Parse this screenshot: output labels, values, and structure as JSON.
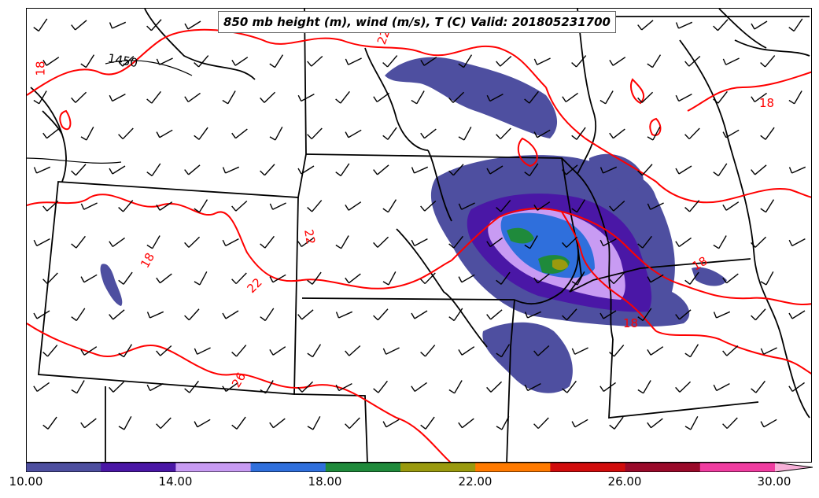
{
  "title": "850 mb height (m), wind (m/s), T (C) Valid: 201805231700",
  "colorbar": {
    "ticks": [
      "10.00",
      "14.00",
      "18.00",
      "22.00",
      "26.00",
      "30.00"
    ],
    "bins": [
      {
        "from": 10,
        "to": 12,
        "color": "#4e4fa0"
      },
      {
        "from": 12,
        "to": 14,
        "color": "#4a17a6"
      },
      {
        "from": 14,
        "to": 16,
        "color": "#c89bf3"
      },
      {
        "from": 16,
        "to": 18,
        "color": "#2f6fdc"
      },
      {
        "from": 18,
        "to": 20,
        "color": "#1f8a3b"
      },
      {
        "from": 20,
        "to": 22,
        "color": "#9a9a0e"
      },
      {
        "from": 22,
        "to": 24,
        "color": "#ff7a00"
      },
      {
        "from": 24,
        "to": 26,
        "color": "#d10c0c"
      },
      {
        "from": 26,
        "to": 28,
        "color": "#9a0a2a"
      },
      {
        "from": 28,
        "to": 30,
        "color": "#f03ca0"
      }
    ],
    "extend_color": "#f7b0d8"
  },
  "contour_labels": {
    "height": [
      {
        "text": "1450",
        "color": "#000000"
      }
    ],
    "temperature": [
      {
        "text": "18",
        "color": "#ff0000"
      },
      {
        "text": "18",
        "color": "#ff0000"
      },
      {
        "text": "22",
        "color": "#ff0000"
      },
      {
        "text": "22",
        "color": "#ff0000"
      },
      {
        "text": "18",
        "color": "#ff0000"
      },
      {
        "text": "18",
        "color": "#ff0000"
      },
      {
        "text": "18",
        "color": "#ff0000"
      },
      {
        "text": "18",
        "color": "#ff0000"
      },
      {
        "text": "26",
        "color": "#ff0000"
      },
      {
        "text": "22",
        "color": "#ff0000"
      }
    ]
  },
  "colors": {
    "temperature_contour": "#ff0000",
    "height_contour": "#000000",
    "borders": "#000000",
    "wind_barb": "#000000"
  }
}
